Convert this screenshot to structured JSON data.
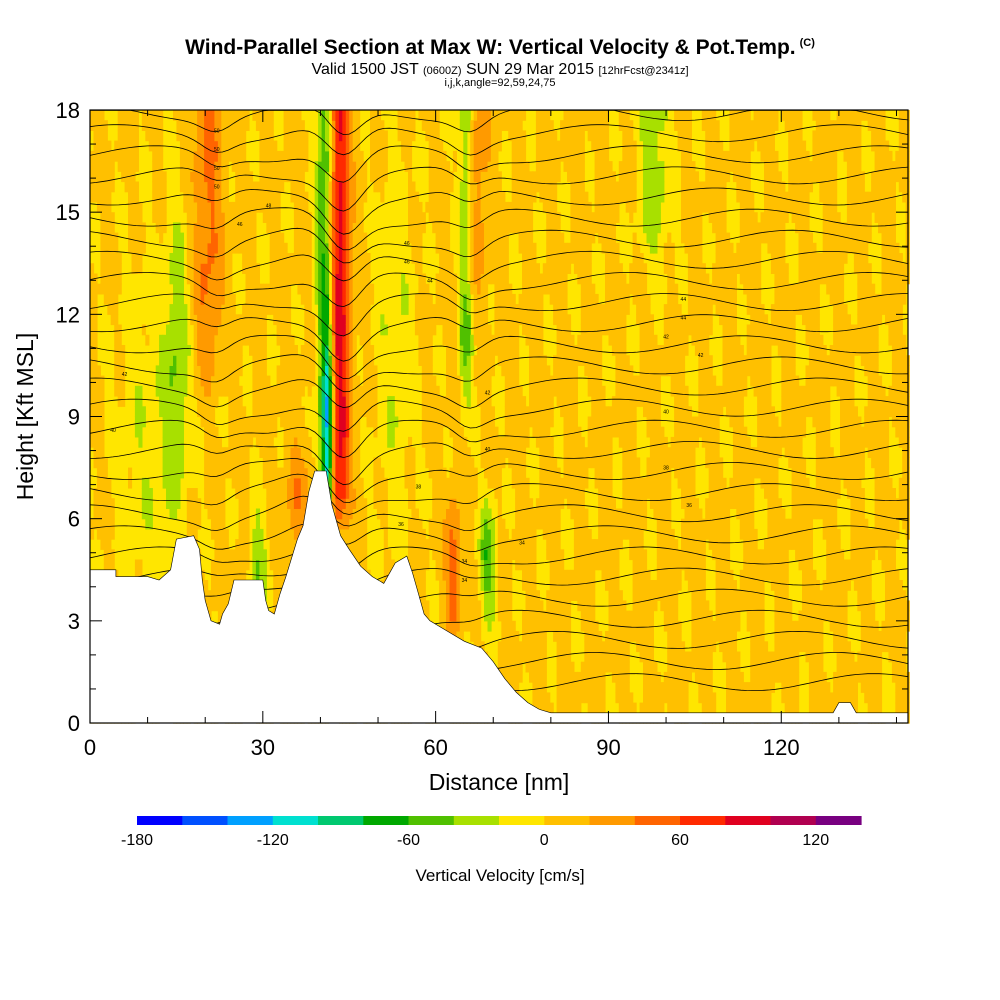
{
  "header": {
    "title": "Wind-Parallel Section at Max W: Vertical Velocity & Pot.Temp.",
    "copyright": "(C)",
    "subtitle_main": "Valid 1500 JST",
    "subtitle_utc": "(0600Z)",
    "subtitle_date": "SUN 29 Mar 2015",
    "subtitle_fcst": "[12hrFcst@2341z]",
    "params": "i,j,k,angle=92,59,24,75"
  },
  "chart_data": {
    "type": "heatmap",
    "xlabel": "Distance [nm]",
    "ylabel": "Height [Kft MSL]",
    "xlim": [
      0,
      142
    ],
    "ylim": [
      0,
      18
    ],
    "x_ticks": [
      0,
      30,
      60,
      90,
      120
    ],
    "y_ticks": [
      0,
      3,
      6,
      9,
      12,
      15,
      18
    ],
    "colorbar": {
      "label": "Vertical Velocity [cm/s]",
      "tick_labels": [
        -180,
        -120,
        -60,
        0,
        60,
        120
      ],
      "min": -180,
      "max": 140,
      "colors": [
        "#0000ff",
        "#0050ff",
        "#00a0ff",
        "#00e0d0",
        "#00c870",
        "#00a800",
        "#50c000",
        "#a8e000",
        "#ffe600",
        "#ffc000",
        "#ff9a00",
        "#ff6400",
        "#ff2a00",
        "#e00020",
        "#b00050",
        "#780080"
      ]
    },
    "terrain_kft": [
      [
        0,
        4.5
      ],
      [
        4.5,
        4.5
      ],
      [
        4.5,
        4.3
      ],
      [
        10,
        4.3
      ],
      [
        12,
        4.2
      ],
      [
        14,
        4.5
      ],
      [
        15,
        5.4
      ],
      [
        18,
        5.5
      ],
      [
        19,
        5.1
      ],
      [
        19.5,
        4.2
      ],
      [
        20,
        3.6
      ],
      [
        21,
        3.0
      ],
      [
        22.5,
        2.9
      ],
      [
        23,
        3.2
      ],
      [
        24,
        3.5
      ],
      [
        25,
        4.2
      ],
      [
        30,
        4.2
      ],
      [
        30.5,
        3.6
      ],
      [
        31,
        3.3
      ],
      [
        32,
        3.2
      ],
      [
        33,
        3.8
      ],
      [
        34,
        4.3
      ],
      [
        36,
        5.4
      ],
      [
        37,
        5.8
      ],
      [
        38,
        6.8
      ],
      [
        39,
        7.4
      ],
      [
        41,
        7.4
      ],
      [
        42,
        6.4
      ],
      [
        43.5,
        5.5
      ],
      [
        45,
        5.1
      ],
      [
        47,
        4.6
      ],
      [
        49,
        4.3
      ],
      [
        51,
        4.1
      ],
      [
        53,
        4.7
      ],
      [
        55,
        4.9
      ],
      [
        56,
        4.4
      ],
      [
        57,
        3.8
      ],
      [
        58,
        3.2
      ],
      [
        59,
        3.0
      ],
      [
        61,
        2.8
      ],
      [
        63,
        2.6
      ],
      [
        65,
        2.4
      ],
      [
        68,
        2.2
      ],
      [
        70,
        1.8
      ],
      [
        72,
        1.3
      ],
      [
        74,
        0.9
      ],
      [
        76,
        0.6
      ],
      [
        78,
        0.4
      ],
      [
        80,
        0.3
      ],
      [
        129,
        0.3
      ],
      [
        130,
        0.6
      ],
      [
        132,
        0.6
      ],
      [
        133,
        0.3
      ],
      [
        142,
        0.3
      ]
    ],
    "theta_labels": [
      "50",
      "50",
      "50",
      "50",
      "48",
      "46",
      "46",
      "46",
      "44",
      "44",
      "44",
      "42",
      "42",
      "42",
      "42",
      "40",
      "40",
      "40",
      "38",
      "38",
      "36",
      "36",
      "34",
      "34",
      "34",
      "32",
      "32",
      "30",
      "30",
      "28"
    ]
  }
}
